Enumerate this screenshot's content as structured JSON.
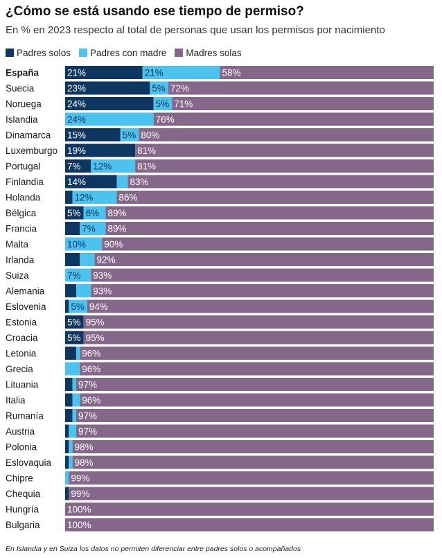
{
  "title": "¿Cómo se está usando ese tiempo de permiso?",
  "subtitle": "En % en 2023 respecto al total de personas que usan los permisos por nacimiento",
  "note": "En Islandia y en Suiza los datos no permiten diferenciar entre padres solos o acompañados",
  "colors": {
    "padres_solos": "#0d3660",
    "padres_con_madre": "#4cc3ee",
    "madres_solas": "#85678a"
  },
  "chart_data": {
    "type": "bar",
    "orientation": "horizontal",
    "stacked": true,
    "title": "¿Cómo se está usando ese tiempo de permiso?",
    "xlim": [
      0,
      100
    ],
    "legend_position": "top-left",
    "highlight_category": "España",
    "categories": [
      "España",
      "Suecia",
      "Noruega",
      "Islandia",
      "Dinamarca",
      "Luxemburgo",
      "Portugal",
      "Finlandia",
      "Holanda",
      "Bélgica",
      "Francia",
      "Malta",
      "Irlanda",
      "Suiza",
      "Alemania",
      "Eslovenia",
      "Estonia",
      "Croacia",
      "Letonia",
      "Grecia",
      "Lituania",
      "Italia",
      "Rumanía",
      "Austria",
      "Polonia",
      "Eslovaquia",
      "Chipre",
      "Chequia",
      "Hungría",
      "Bulgaria"
    ],
    "series": [
      {
        "name": "Padres solos",
        "key": "padres_solos",
        "values": [
          21,
          23,
          24,
          0,
          15,
          19,
          7,
          14,
          2,
          5,
          4,
          0,
          4,
          0,
          3,
          1,
          5,
          5,
          3,
          0,
          2,
          2,
          2,
          1,
          1,
          1,
          0,
          1,
          0,
          0
        ],
        "labels": [
          "21%",
          "23%",
          "24%",
          "",
          "15%",
          "19%",
          "7%",
          "14%",
          "",
          "5%",
          "",
          "",
          "",
          "",
          "",
          "",
          "5%",
          "5%",
          "",
          "",
          "",
          "",
          "",
          "",
          "",
          "",
          "",
          "",
          "",
          ""
        ]
      },
      {
        "name": "Padres con madre",
        "key": "padres_con_madre",
        "values": [
          21,
          5,
          5,
          24,
          5,
          0,
          12,
          3,
          12,
          6,
          7,
          10,
          4,
          7,
          4,
          5,
          0,
          0,
          1,
          4,
          1,
          2,
          1,
          2,
          1,
          1,
          1,
          0,
          0,
          0
        ],
        "labels": [
          "21%",
          "5%",
          "5%",
          "24%",
          "5%",
          "",
          "12%",
          "",
          "12%",
          "6%",
          "7%",
          "10%",
          "",
          "7%",
          "",
          "5%",
          "",
          "",
          "",
          "",
          "",
          "",
          "",
          "",
          "",
          "",
          "",
          "",
          "",
          ""
        ]
      },
      {
        "name": "Madres solas",
        "key": "madres_solas",
        "values": [
          58,
          72,
          71,
          76,
          80,
          81,
          81,
          83,
          86,
          89,
          89,
          90,
          92,
          93,
          93,
          94,
          95,
          95,
          96,
          96,
          97,
          96,
          97,
          97,
          98,
          98,
          99,
          99,
          100,
          100
        ],
        "labels": [
          "58%",
          "72%",
          "71%",
          "76%",
          "80%",
          "81%",
          "81%",
          "83%",
          "86%",
          "89%",
          "89%",
          "90%",
          "92%",
          "93%",
          "93%",
          "94%",
          "95%",
          "95%",
          "96%",
          "96%",
          "97%",
          "96%",
          "97%",
          "97%",
          "98%",
          "98%",
          "99%",
          "99%",
          "100%",
          "100%"
        ]
      }
    ]
  }
}
